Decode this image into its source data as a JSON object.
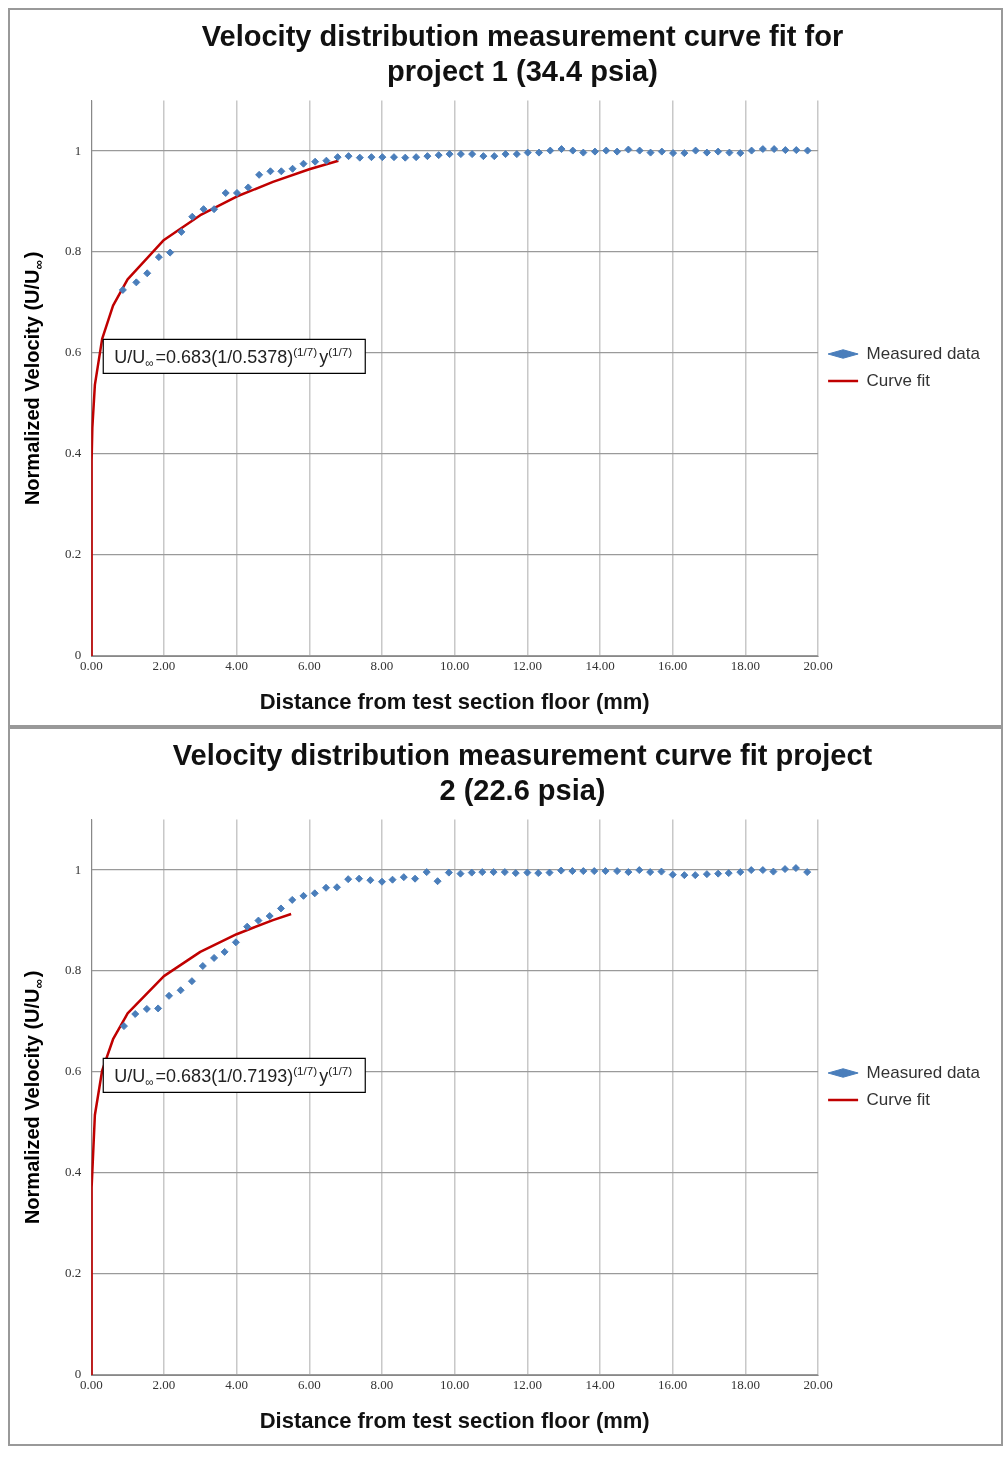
{
  "chart_data": [
    {
      "type": "scatter",
      "title": "Velocity distribution measurement curve fit for project 1 (34.4 psia)",
      "xlabel": "Distance from test section floor (mm)",
      "ylabel": "Normalized Velocity (U/U$_{∞}$)",
      "annotations": [
        "U/U$_{∞}$=0.683(1/0.5378)$^{(1/7)}$y$^{(1/7)}$"
      ],
      "xlim": [
        0,
        20
      ],
      "xticks": [
        {
          "value": 0,
          "label": "0.00"
        },
        {
          "value": 2,
          "label": "2.00"
        },
        {
          "value": 4,
          "label": "4.00"
        },
        {
          "value": 6,
          "label": "6.00"
        },
        {
          "value": 8,
          "label": "8.00"
        },
        {
          "value": 10,
          "label": "10.00"
        },
        {
          "value": 12,
          "label": "12.00"
        },
        {
          "value": 14,
          "label": "14.00"
        },
        {
          "value": 16,
          "label": "16.00"
        },
        {
          "value": 18,
          "label": "18.00"
        },
        {
          "value": 20,
          "label": "20.00"
        }
      ],
      "ylim": [
        0,
        1.1
      ],
      "yticks": [
        0,
        0.2,
        0.4,
        0.6,
        0.8,
        1
      ],
      "grid": true,
      "legend": "right",
      "series": [
        {
          "name": "Measured data",
          "type": "scatter",
          "color": "#4a7ebb",
          "marker": "diamond",
          "x": [
            0.87,
            1.24,
            1.54,
            1.86,
            2.17,
            2.48,
            2.78,
            3.09,
            3.38,
            3.7,
            4.01,
            4.32,
            4.62,
            4.93,
            5.23,
            5.54,
            5.84,
            6.16,
            6.47,
            6.78,
            7.08,
            7.39,
            7.71,
            8.01,
            8.33,
            8.64,
            8.94,
            9.25,
            9.56,
            9.86,
            10.17,
            10.48,
            10.79,
            11.09,
            11.4,
            11.71,
            12.01,
            12.32,
            12.63,
            12.94,
            13.25,
            13.54,
            13.86,
            14.17,
            14.47,
            14.78,
            15.09,
            15.39,
            15.7,
            16.01,
            16.32,
            16.63,
            16.94,
            17.25,
            17.56,
            17.86,
            18.17,
            18.48,
            18.79,
            19.1,
            19.4,
            19.71
          ],
          "values": [
            0.725,
            0.74,
            0.758,
            0.79,
            0.799,
            0.84,
            0.87,
            0.885,
            0.885,
            0.917,
            0.917,
            0.928,
            0.953,
            0.96,
            0.96,
            0.965,
            0.975,
            0.979,
            0.981,
            0.988,
            0.99,
            0.987,
            0.988,
            0.988,
            0.988,
            0.987,
            0.988,
            0.99,
            0.992,
            0.994,
            0.994,
            0.994,
            0.99,
            0.99,
            0.994,
            0.994,
            0.997,
            0.997,
            1.001,
            1.004,
            1.001,
            0.997,
            0.999,
            1.001,
            0.999,
            1.003,
            1.001,
            0.997,
            0.999,
            0.996,
            0.996,
            1.001,
            0.997,
            0.999,
            0.997,
            0.996,
            1.001,
            1.004,
            1.004,
            1.002,
            1.002,
            1.001
          ]
        },
        {
          "name": "Curve fit",
          "type": "line",
          "color": "#c00000",
          "marker": "none",
          "line_style": "solid",
          "x": [
            0,
            0.01,
            0.03,
            0.1,
            0.3,
            0.6,
            1,
            2,
            3,
            4,
            5,
            6,
            6.8
          ],
          "values": [
            0,
            0.387,
            0.452,
            0.537,
            0.628,
            0.694,
            0.746,
            0.824,
            0.873,
            0.91,
            0.939,
            0.964,
            0.981
          ]
        }
      ]
    },
    {
      "type": "scatter",
      "title": "Velocity distribution measurement curve fit project 2 (22.6 psia)",
      "xlabel": "Distance from test section floor (mm)",
      "ylabel": "Normalized Velocity (U/U$_{∞}$)",
      "annotations": [
        "U/U$_{∞}$=0.683(1/0.7193)$^{(1/7)}$y$^{(1/7)}$"
      ],
      "xlim": [
        0,
        20
      ],
      "xticks": [
        {
          "value": 0,
          "label": "0.00"
        },
        {
          "value": 2,
          "label": "2.00"
        },
        {
          "value": 4,
          "label": "4.00"
        },
        {
          "value": 6,
          "label": "6.00"
        },
        {
          "value": 8,
          "label": "8.00"
        },
        {
          "value": 10,
          "label": "10.00"
        },
        {
          "value": 12,
          "label": "12.00"
        },
        {
          "value": 14,
          "label": "14.00"
        },
        {
          "value": 16,
          "label": "16.00"
        },
        {
          "value": 18,
          "label": "18.00"
        },
        {
          "value": 20,
          "label": "20.00"
        }
      ],
      "ylim": [
        0,
        1.1
      ],
      "yticks": [
        0,
        0.2,
        0.4,
        0.6,
        0.8,
        1
      ],
      "grid": true,
      "legend": "right",
      "series": [
        {
          "name": "Measured data",
          "type": "scatter",
          "color": "#4a7ebb",
          "marker": "diamond",
          "x": [
            0.9,
            1.21,
            1.53,
            1.84,
            2.14,
            2.46,
            2.77,
            3.07,
            3.38,
            3.67,
            3.98,
            4.29,
            4.6,
            4.91,
            5.22,
            5.53,
            5.84,
            6.15,
            6.46,
            6.76,
            7.07,
            7.37,
            7.68,
            8.0,
            8.29,
            8.6,
            8.91,
            9.23,
            9.53,
            9.84,
            10.16,
            10.47,
            10.76,
            11.07,
            11.38,
            11.68,
            12.0,
            12.3,
            12.61,
            12.93,
            13.24,
            13.54,
            13.84,
            14.15,
            14.47,
            14.78,
            15.08,
            15.38,
            15.69,
            16.0,
            16.32,
            16.62,
            16.94,
            17.25,
            17.54,
            17.86,
            18.16,
            18.48,
            18.77,
            19.09,
            19.39,
            19.7
          ],
          "values": [
            0.691,
            0.715,
            0.725,
            0.726,
            0.751,
            0.762,
            0.78,
            0.81,
            0.826,
            0.838,
            0.857,
            0.888,
            0.9,
            0.909,
            0.924,
            0.941,
            0.949,
            0.954,
            0.965,
            0.966,
            0.982,
            0.983,
            0.98,
            0.977,
            0.981,
            0.986,
            0.983,
            0.996,
            0.978,
            0.995,
            0.993,
            0.995,
            0.996,
            0.996,
            0.996,
            0.994,
            0.995,
            0.994,
            0.995,
            0.999,
            0.998,
            0.998,
            0.998,
            0.998,
            0.998,
            0.996,
            1.0,
            0.996,
            0.997,
            0.991,
            0.99,
            0.99,
            0.992,
            0.993,
            0.994,
            0.996,
            1.0,
            1.0,
            0.997,
            1.002,
            1.004,
            0.996
          ]
        },
        {
          "name": "Curve fit",
          "type": "line",
          "color": "#c00000",
          "marker": "none",
          "line_style": "solid",
          "x": [
            0,
            0.01,
            0.1,
            0.3,
            0.6,
            1,
            2,
            3,
            4,
            5,
            5.5
          ],
          "values": [
            0,
            0.371,
            0.515,
            0.603,
            0.665,
            0.716,
            0.79,
            0.838,
            0.873,
            0.901,
            0.913
          ]
        }
      ]
    }
  ]
}
